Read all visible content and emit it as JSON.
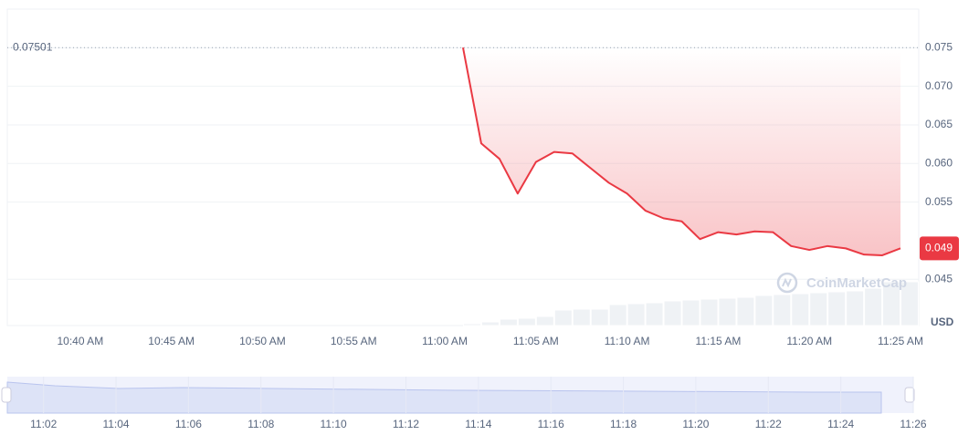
{
  "chart_data": {
    "type": "line",
    "x": [
      "11:01 AM",
      "11:02 AM",
      "11:03 AM",
      "11:04 AM",
      "11:05 AM",
      "11:06 AM",
      "11:07 AM",
      "11:08 AM",
      "11:09 AM",
      "11:10 AM",
      "11:11 AM",
      "11:12 AM",
      "11:13 AM",
      "11:14 AM",
      "11:15 AM",
      "11:16 AM",
      "11:17 AM",
      "11:18 AM",
      "11:19 AM",
      "11:20 AM",
      "11:21 AM",
      "11:22 AM",
      "11:23 AM",
      "11:24 AM",
      "11:25 AM"
    ],
    "values": [
      0.07501,
      0.0626,
      0.0606,
      0.0561,
      0.0602,
      0.0615,
      0.0613,
      0.0594,
      0.0575,
      0.0561,
      0.0539,
      0.0529,
      0.0525,
      0.0502,
      0.0511,
      0.0508,
      0.0512,
      0.0511,
      0.0493,
      0.0488,
      0.0493,
      0.049,
      0.0482,
      0.0481,
      0.049
    ],
    "color": "#ea3943",
    "volume": [
      2,
      4,
      7,
      8,
      10,
      17,
      18,
      18,
      23,
      24,
      25,
      27,
      28,
      29,
      30,
      31,
      33,
      34,
      35,
      36,
      37,
      38,
      41,
      48,
      48
    ],
    "volume_color": "#eff2f5",
    "volume_lim": [
      0,
      100
    ],
    "xlim": [
      "10:36 AM",
      "11:26 AM"
    ],
    "xticks": [
      "10:40 AM",
      "10:45 AM",
      "10:50 AM",
      "10:55 AM",
      "11:00 AM",
      "11:05 AM",
      "11:10 AM",
      "11:15 AM",
      "11:20 AM",
      "11:25 AM"
    ],
    "ylim": [
      0.039,
      0.08
    ],
    "yticks": [
      0.075,
      {
        "value": 0.07,
        "label": "0.070"
      },
      0.065,
      {
        "value": 0.06,
        "label": "0.060"
      },
      0.055,
      0.045
    ],
    "grid": true,
    "y_unit": "USD",
    "watermark": "CoinMarketCap",
    "navigator_xlim": [
      "11:01",
      "11:26"
    ],
    "navigator_ticks": [
      "11:02",
      "11:04",
      "11:06",
      "11:08",
      "11:10",
      "11:12",
      "11:14",
      "11:16",
      "11:18",
      "11:20",
      "11:22",
      "11:24",
      "11:26"
    ]
  }
}
